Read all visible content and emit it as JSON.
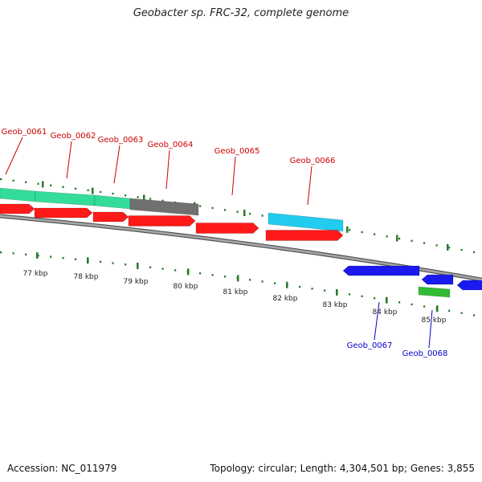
{
  "title": "Geobacter sp. FRC-32, complete genome",
  "footer": {
    "accession": "Accession: NC_011979",
    "summary": "Topology: circular; Length: 4,304,501 bp; Genes: 3,855"
  },
  "colors": {
    "forward_label": "#cc0000",
    "reverse_label": "#0000cc",
    "cds": "#ff1a1a",
    "cds_reverse": "#1a1aee",
    "orthologous": "#33dd99",
    "unassigned": "#707070",
    "highlight": "#22ccee",
    "rna": "#33bb33",
    "backbone": "#888888",
    "ticks": "#2a7a2a"
  },
  "scale_labels": [
    "77 kbp",
    "78 kbp",
    "79 kbp",
    "80 kbp",
    "81 kbp",
    "82 kbp",
    "83 kbp",
    "84 kbp",
    "85 kbp"
  ],
  "gene_labels": [
    "Geob_0061",
    "Geob_0062",
    "Geob_0063",
    "Geob_0064",
    "Geob_0065",
    "Geob_0066",
    "Geob_0067",
    "Geob_0068"
  ]
}
